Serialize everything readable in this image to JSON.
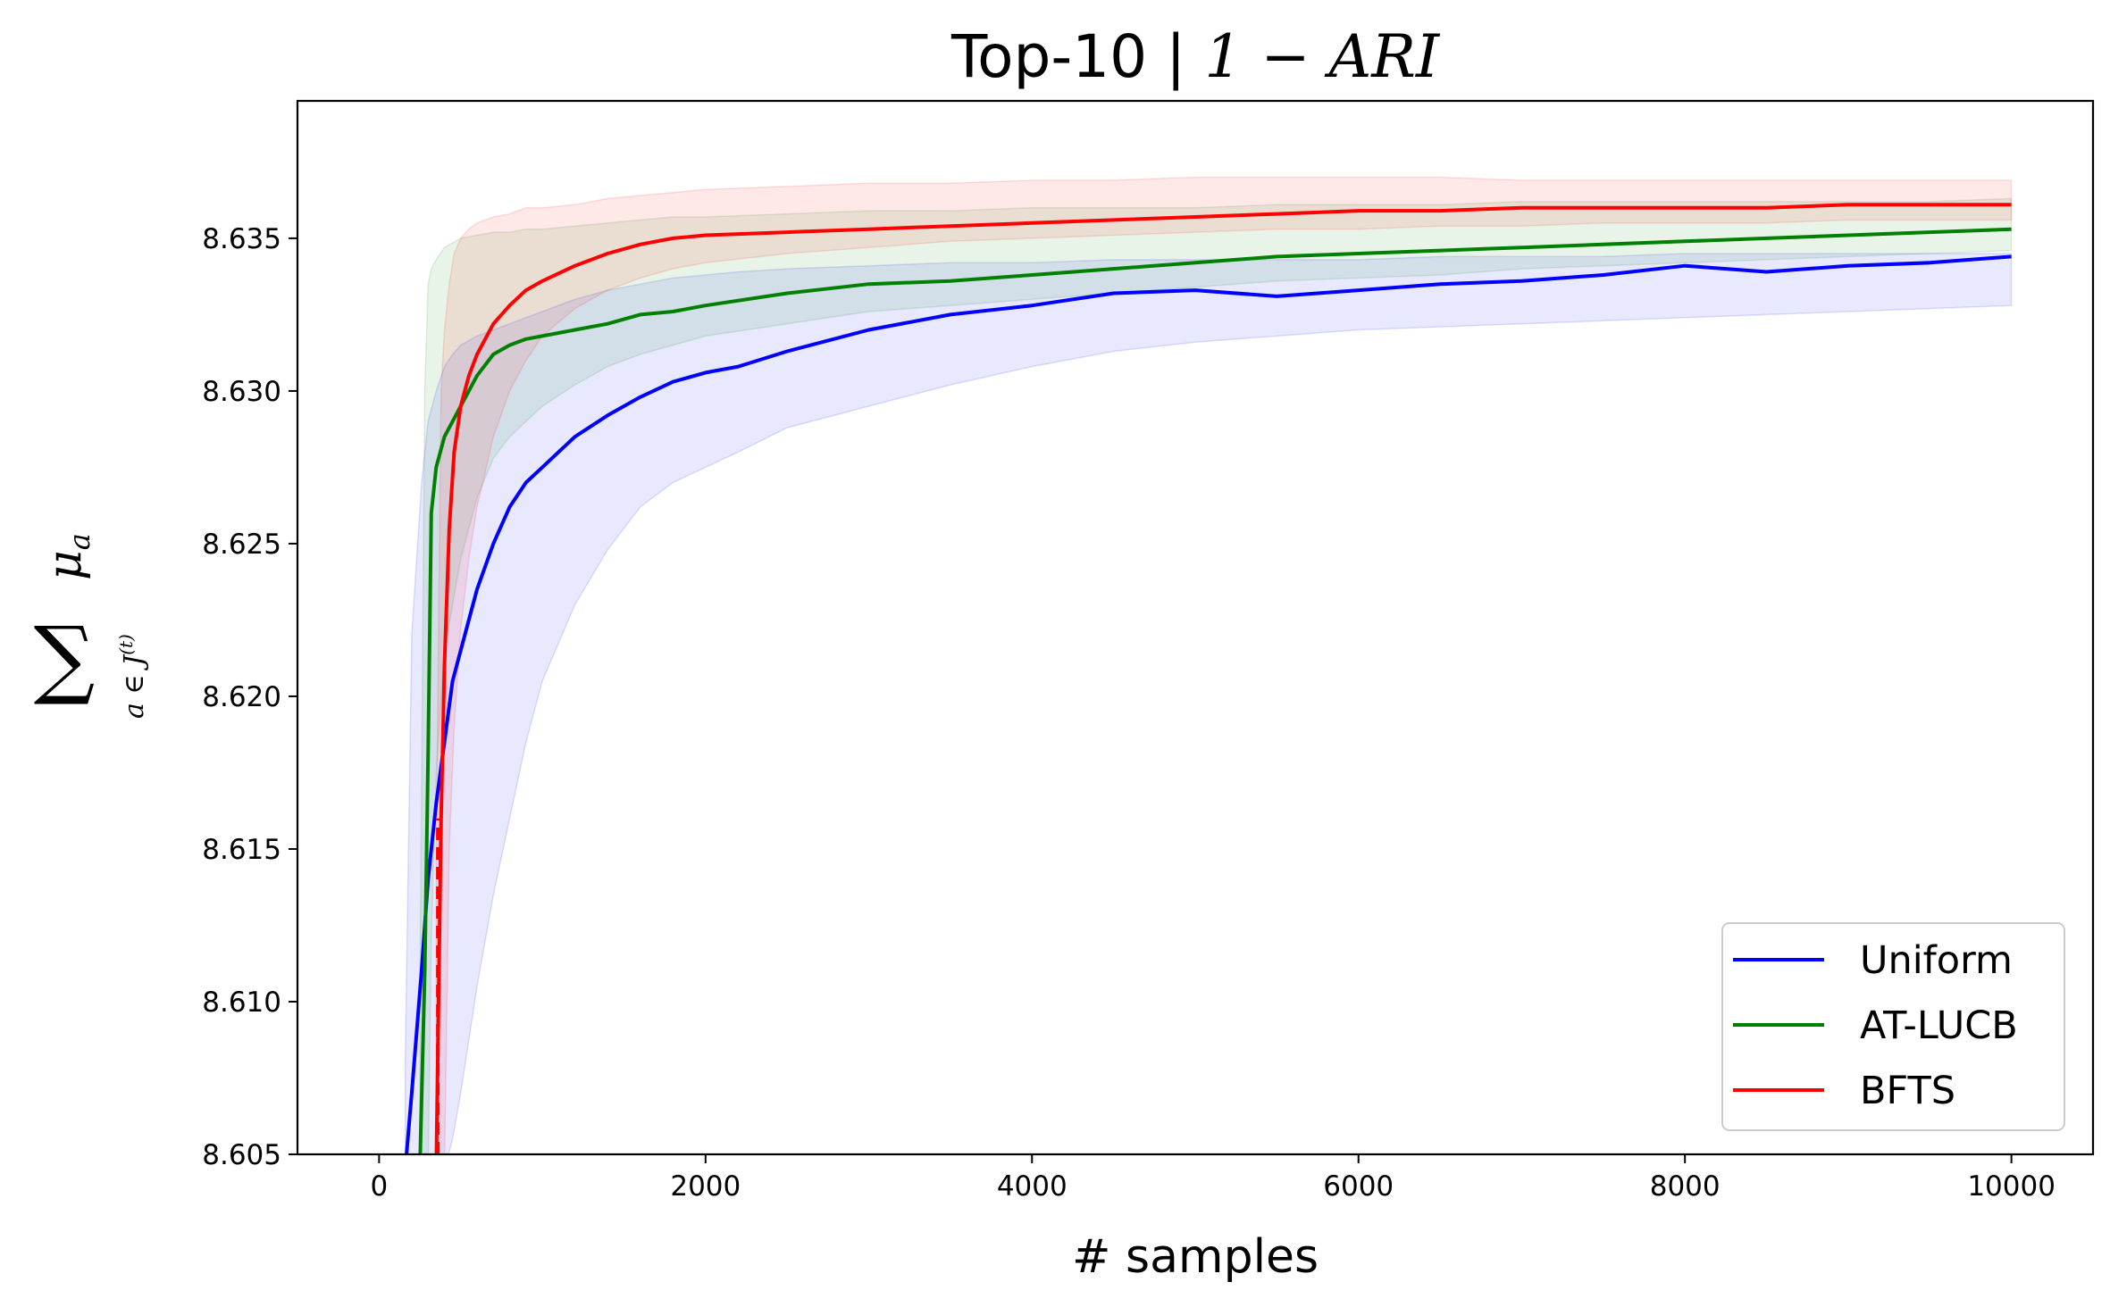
{
  "chart_data": {
    "type": "line",
    "title": "Top-10 | ",
    "title_math": "1 − ARI",
    "xlabel": "# samples",
    "ylabel": "∑ μ_a over a ∈ J^(t)",
    "ylabel_parts": {
      "sum": "∑",
      "mu": "μ",
      "mu_sub": "a",
      "under": "a ∈ J",
      "under_sup": "(t)"
    },
    "xlim": [
      -500,
      10500
    ],
    "ylim": [
      8.605,
      8.6395
    ],
    "xticks": [
      0,
      2000,
      4000,
      6000,
      8000,
      10000
    ],
    "yticks": [
      8.605,
      8.61,
      8.615,
      8.62,
      8.625,
      8.63,
      8.635
    ],
    "xtick_labels": [
      "0",
      "2000",
      "4000",
      "6000",
      "8000",
      "10000"
    ],
    "ytick_labels": [
      "8.605",
      "8.610",
      "8.615",
      "8.620",
      "8.625",
      "8.630",
      "8.635"
    ],
    "grid": false,
    "legend_position": "lower-right",
    "series": [
      {
        "name": "Uniform",
        "color": "#0000ff",
        "x": [
          160,
          200,
          260,
          300,
          350,
          400,
          450,
          500,
          600,
          700,
          800,
          900,
          1000,
          1200,
          1400,
          1600,
          1800,
          2000,
          2200,
          2500,
          3000,
          3500,
          4000,
          4500,
          5000,
          5500,
          6000,
          6500,
          7000,
          7500,
          8000,
          8500,
          9000,
          9500,
          10000
        ],
        "y": [
          8.6045,
          8.607,
          8.611,
          8.614,
          8.6165,
          8.6185,
          8.6205,
          8.6215,
          8.6235,
          8.625,
          8.6262,
          8.627,
          8.6275,
          8.6285,
          8.6292,
          8.6298,
          8.6303,
          8.6306,
          8.6308,
          8.6313,
          8.632,
          8.6325,
          8.6328,
          8.6332,
          8.6333,
          8.6331,
          8.6333,
          8.6335,
          8.6336,
          8.6338,
          8.6341,
          8.6339,
          8.6341,
          8.6342,
          8.6344
        ],
        "lower": [
          8.6045,
          8.6045,
          8.6045,
          8.6045,
          8.6045,
          8.6045,
          8.6055,
          8.607,
          8.6105,
          8.6135,
          8.616,
          8.6185,
          8.6205,
          8.623,
          8.6248,
          8.6262,
          8.627,
          8.6275,
          8.628,
          8.6288,
          8.6295,
          8.6302,
          8.6308,
          8.6313,
          8.6316,
          8.6318,
          8.632,
          8.6321,
          8.6322,
          8.6323,
          8.6324,
          8.6325,
          8.6326,
          8.6327,
          8.6328
        ],
        "upper": [
          8.608,
          8.622,
          8.627,
          8.629,
          8.63,
          8.6308,
          8.6312,
          8.6315,
          8.6318,
          8.632,
          8.6322,
          8.6324,
          8.6326,
          8.633,
          8.6333,
          8.6335,
          8.6337,
          8.6338,
          8.6339,
          8.634,
          8.6341,
          8.6342,
          8.6342,
          8.6343,
          8.6343,
          8.6343,
          8.6343,
          8.6344,
          8.6344,
          8.6344,
          8.6345,
          8.6345,
          8.6345,
          8.6345,
          8.6345
        ]
      },
      {
        "name": "AT-LUCB",
        "color": "#008000",
        "x": [
          250,
          280,
          300,
          320,
          350,
          400,
          500,
          600,
          700,
          800,
          900,
          1000,
          1200,
          1400,
          1600,
          1800,
          2000,
          2500,
          3000,
          3500,
          4000,
          4500,
          5000,
          5500,
          6000,
          6500,
          7000,
          7500,
          8000,
          8500,
          9000,
          9500,
          10000
        ],
        "y": [
          8.6045,
          8.611,
          8.618,
          8.626,
          8.6275,
          8.6285,
          8.6295,
          8.6305,
          8.6312,
          8.6315,
          8.6317,
          8.6318,
          8.632,
          8.6322,
          8.6325,
          8.6326,
          8.6328,
          8.6332,
          8.6335,
          8.6336,
          8.6338,
          8.634,
          8.6342,
          8.6344,
          8.6345,
          8.6346,
          8.6347,
          8.6348,
          8.6349,
          8.635,
          8.6351,
          8.6352,
          8.6353
        ],
        "lower": [
          8.6045,
          8.6045,
          8.6045,
          8.612,
          8.6175,
          8.6215,
          8.6245,
          8.6265,
          8.6278,
          8.6285,
          8.629,
          8.6295,
          8.6302,
          8.6308,
          8.6312,
          8.6315,
          8.6318,
          8.6322,
          8.6326,
          8.6328,
          8.633,
          8.6332,
          8.6334,
          8.6336,
          8.6337,
          8.6338,
          8.634,
          8.6341,
          8.6342,
          8.6343,
          8.6344,
          8.6345,
          8.6346
        ],
        "upper": [
          8.61,
          8.63,
          8.6335,
          8.634,
          8.6343,
          8.6347,
          8.635,
          8.6351,
          8.6352,
          8.6352,
          8.6353,
          8.6353,
          8.6354,
          8.6355,
          8.6356,
          8.6357,
          8.6357,
          8.6358,
          8.6359,
          8.6359,
          8.636,
          8.636,
          8.636,
          8.6361,
          8.6361,
          8.6361,
          8.6362,
          8.6362,
          8.6362,
          8.6362,
          8.6362,
          8.6362,
          8.6363
        ]
      },
      {
        "name": "BFTS",
        "color": "#ff0000",
        "x": [
          350,
          380,
          400,
          430,
          460,
          500,
          550,
          600,
          700,
          800,
          900,
          1000,
          1200,
          1400,
          1600,
          1800,
          2000,
          2500,
          3000,
          3500,
          4000,
          4500,
          5000,
          5500,
          6000,
          6500,
          7000,
          7500,
          8000,
          8500,
          9000,
          9500,
          10000
        ],
        "y": [
          8.6045,
          8.616,
          8.621,
          8.6255,
          8.628,
          8.6295,
          8.6305,
          8.6312,
          8.6322,
          8.6328,
          8.6333,
          8.6336,
          8.6341,
          8.6345,
          8.6348,
          8.635,
          8.6351,
          8.6352,
          8.6353,
          8.6354,
          8.6355,
          8.6356,
          8.6357,
          8.6358,
          8.6359,
          8.6359,
          8.636,
          8.636,
          8.636,
          8.636,
          8.6361,
          8.6361,
          8.6361
        ],
        "lower": [
          8.6045,
          8.6045,
          8.6045,
          8.615,
          8.619,
          8.6222,
          8.6245,
          8.6262,
          8.6285,
          8.63,
          8.631,
          8.6318,
          8.6327,
          8.6333,
          8.6337,
          8.634,
          8.6342,
          8.6345,
          8.6347,
          8.6349,
          8.635,
          8.6351,
          8.6352,
          8.6353,
          8.6353,
          8.6354,
          8.6354,
          8.6355,
          8.6355,
          8.6355,
          8.6356,
          8.6356,
          8.6356
        ],
        "upper": [
          8.615,
          8.63,
          8.632,
          8.6335,
          8.6345,
          8.635,
          8.6353,
          8.6355,
          8.6357,
          8.6358,
          8.636,
          8.636,
          8.6361,
          8.6363,
          8.6364,
          8.6365,
          8.6366,
          8.6367,
          8.6368,
          8.6368,
          8.6369,
          8.6369,
          8.637,
          8.637,
          8.637,
          8.637,
          8.6369,
          8.6369,
          8.6369,
          8.6369,
          8.6369,
          8.6369,
          8.6369
        ]
      }
    ],
    "vertical_marker": {
      "x": 360,
      "color": "#ff0000",
      "style": "dashed"
    }
  }
}
